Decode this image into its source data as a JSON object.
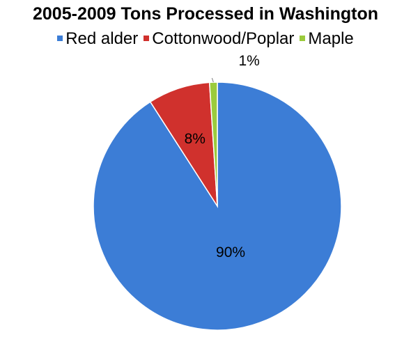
{
  "chart_data": {
    "type": "pie",
    "title": "2005-2009 Tons Processed in Washington",
    "legend_position": "top",
    "slices": [
      {
        "name": "Red alder",
        "value": 90,
        "label": "90%",
        "color": "#3C7DD6"
      },
      {
        "name": "Cottonwood/Poplar",
        "value": 8,
        "label": "8%",
        "color": "#D0312D"
      },
      {
        "name": "Maple",
        "value": 1,
        "label": "1%",
        "color": "#9BCB3C"
      }
    ]
  }
}
